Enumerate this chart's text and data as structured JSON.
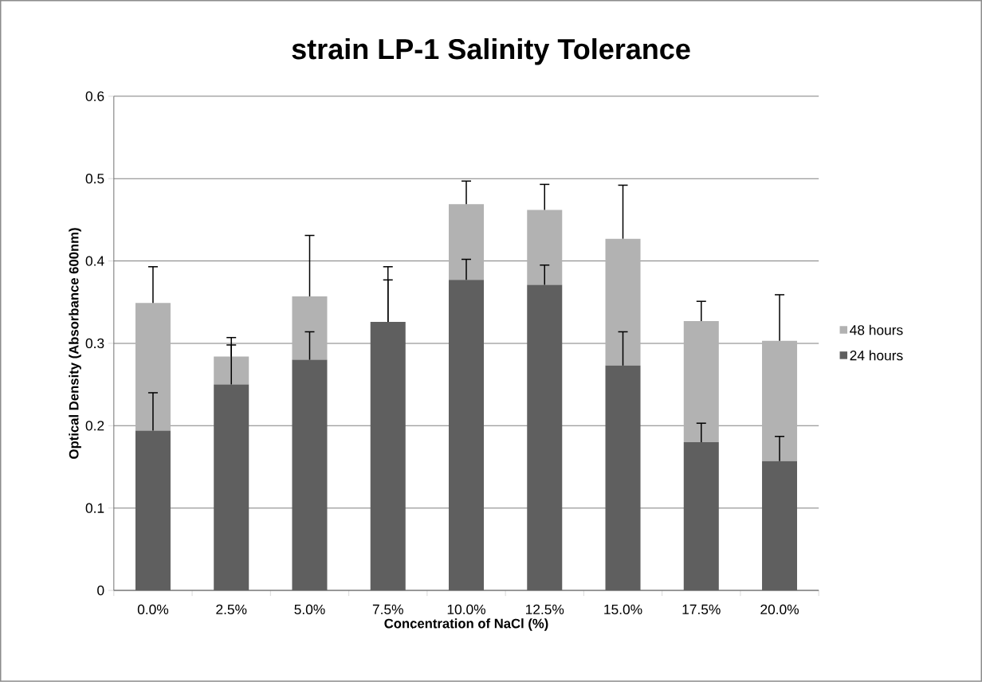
{
  "chart_data": {
    "type": "bar",
    "title": "strain LP-1 Salinity Tolerance",
    "xlabel": "Concentration of NaCl (%)",
    "ylabel": "Optical Density (Absorbance 600nm)",
    "categories": [
      "0.0%",
      "2.5%",
      "5.0%",
      "7.5%",
      "10.0%",
      "12.5%",
      "15.0%",
      "17.5%",
      "20.0%"
    ],
    "stacked": true,
    "series": [
      {
        "name": "24 hours",
        "color": "#5f5f5f",
        "values": [
          0.194,
          0.25,
          0.28,
          0.326,
          0.377,
          0.371,
          0.273,
          0.18,
          0.157
        ],
        "errors": [
          [
            0.194,
            0.24
          ],
          [
            0.25,
            0.298
          ],
          [
            0.28,
            0.314
          ],
          [
            0.326,
            0.377
          ],
          [
            0.377,
            0.402
          ],
          [
            0.371,
            0.395
          ],
          [
            0.273,
            0.314
          ],
          [
            0.18,
            0.203
          ],
          [
            0.157,
            0.187
          ]
        ]
      },
      {
        "name": "48 hours",
        "color": "#b2b2b2",
        "values": [
          0.155,
          0.034,
          0.077,
          0,
          0.092,
          0.091,
          0.154,
          0.147,
          0.146
        ],
        "errors": [
          [
            0.349,
            0.393
          ],
          [
            0.284,
            0.307
          ],
          [
            0.357,
            0.431
          ],
          [
            0.326,
            0.393
          ],
          [
            0.469,
            0.497
          ],
          [
            0.462,
            0.493
          ],
          [
            0.427,
            0.492
          ],
          [
            0.327,
            0.351
          ],
          [
            0.303,
            0.359
          ]
        ]
      }
    ],
    "ylim": [
      0,
      0.6
    ],
    "yticks": [
      0,
      0.1,
      0.2,
      0.3,
      0.4,
      0.5,
      0.6
    ],
    "grid": "y",
    "legend": "right"
  }
}
